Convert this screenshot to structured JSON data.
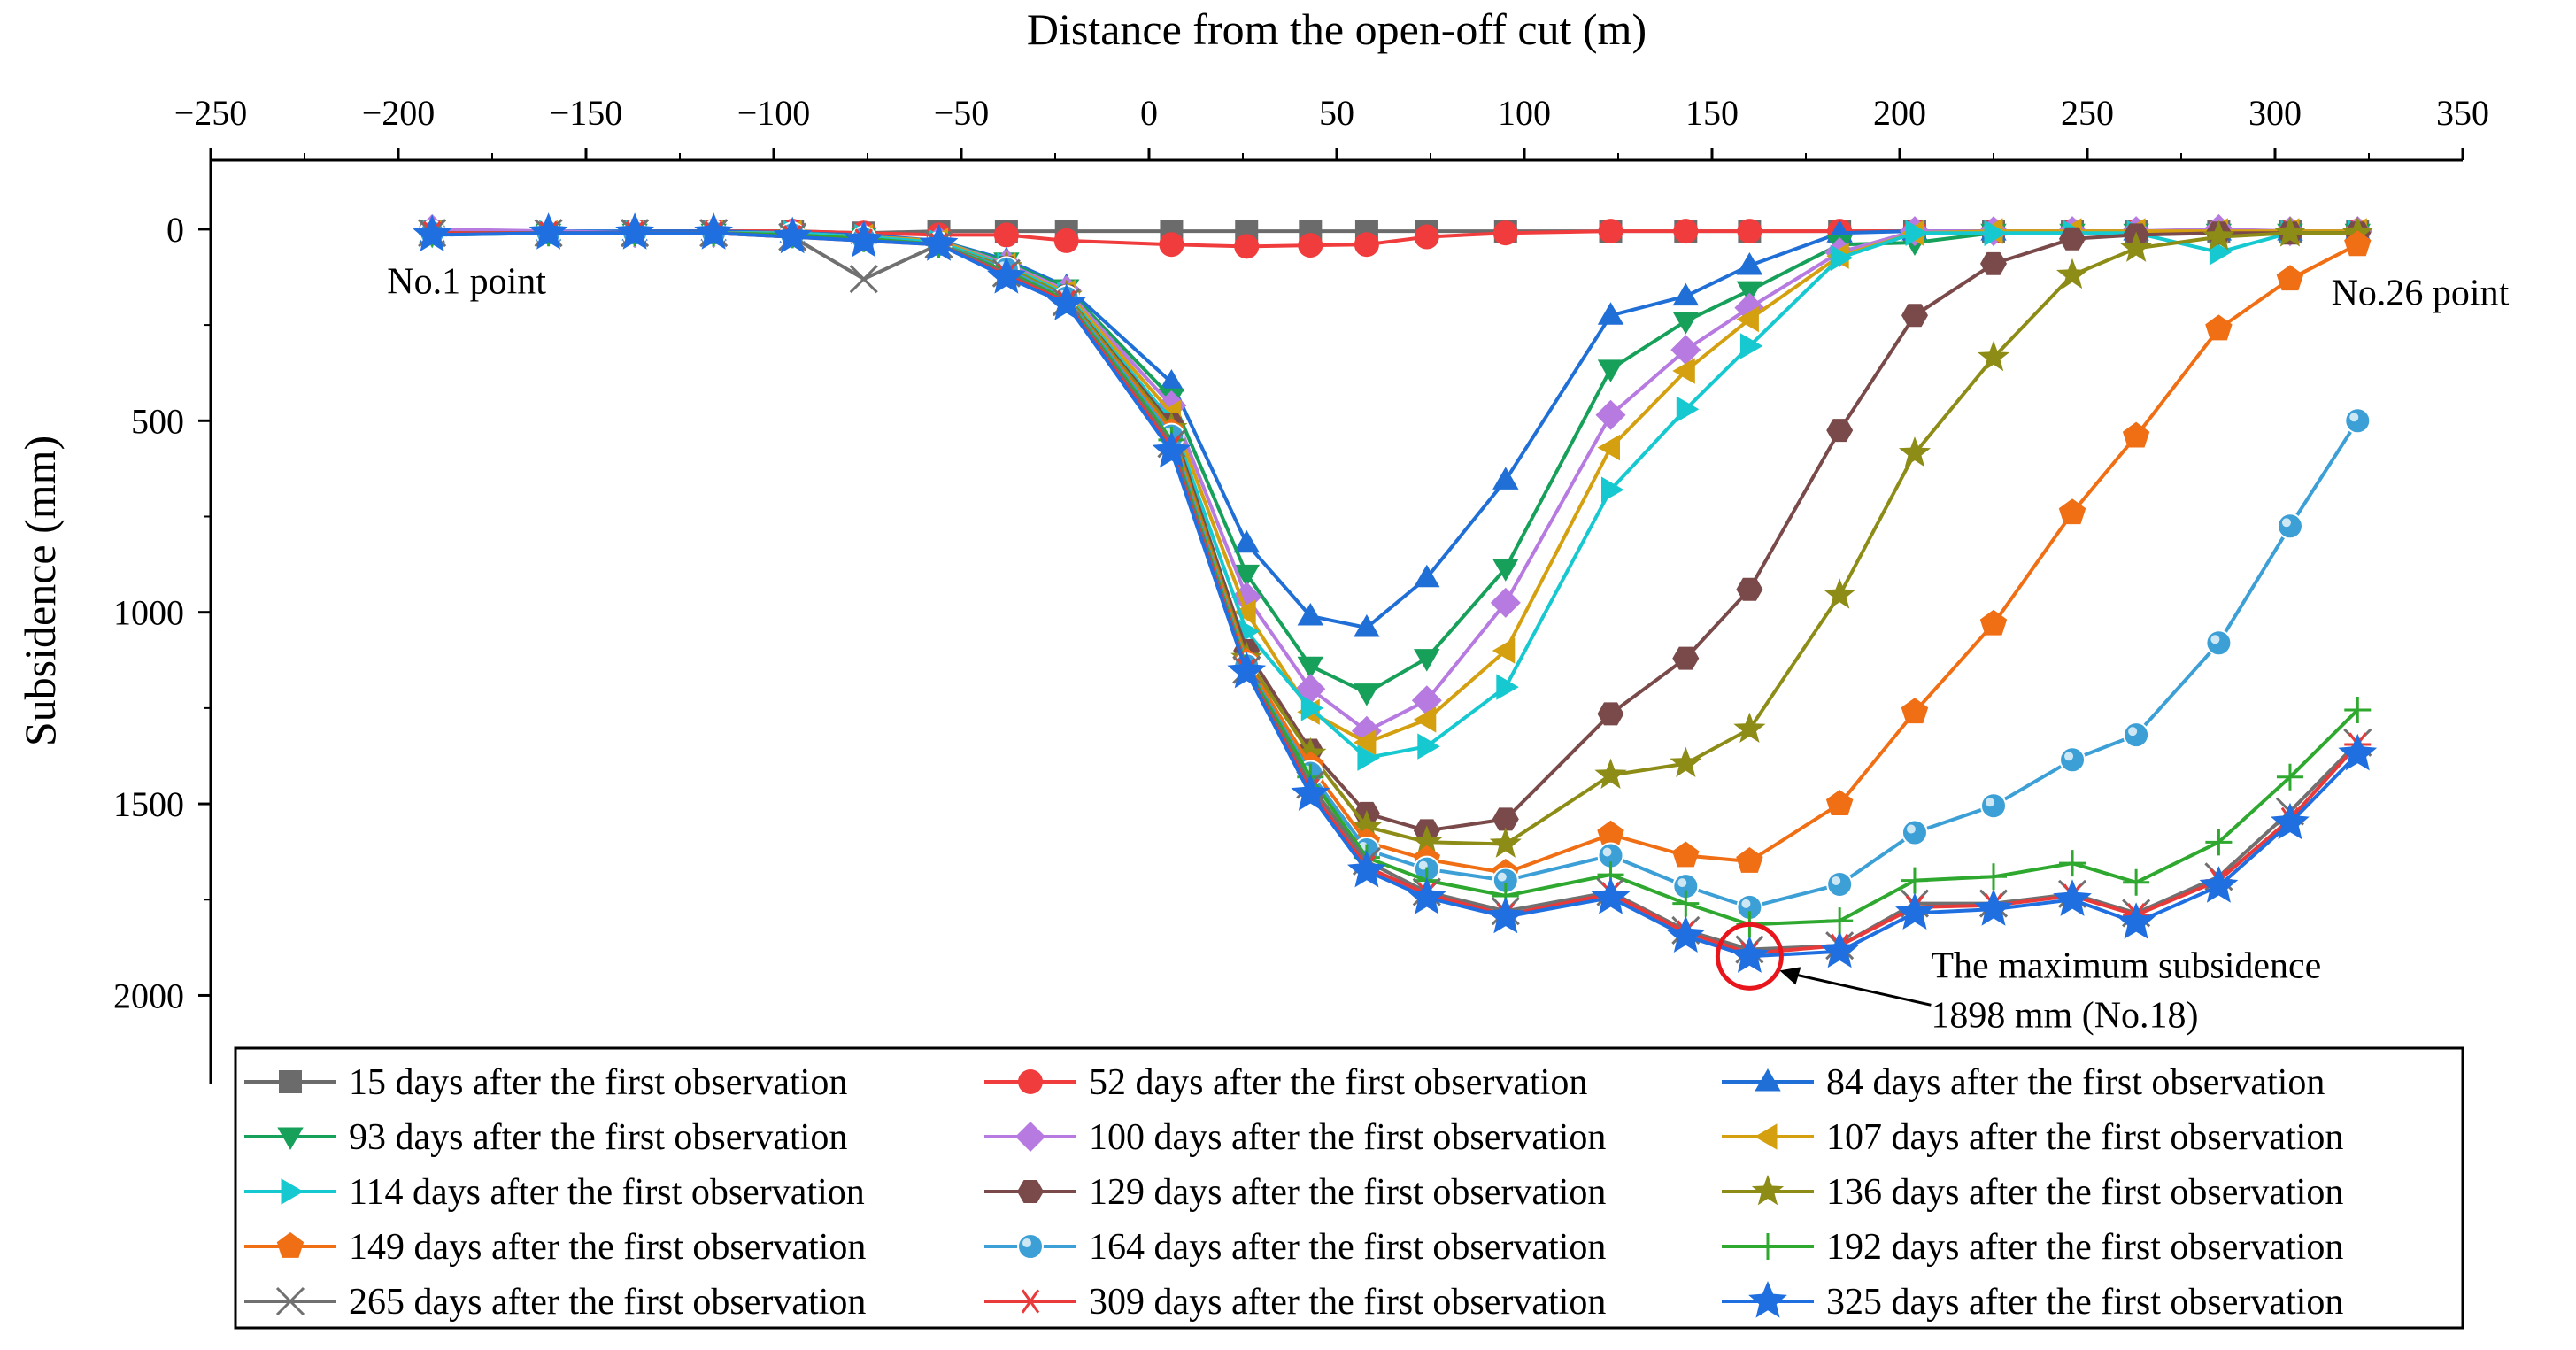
{
  "chart_data": {
    "type": "line",
    "title": "",
    "xlabel": "Distance from the open-off cut (m)",
    "ylabel": "Subsidence (mm)",
    "xlim": [
      -250,
      350
    ],
    "ylim": [
      2230,
      -180
    ],
    "x_ticks": [
      -250,
      -200,
      -150,
      -100,
      -50,
      0,
      50,
      100,
      150,
      200,
      250,
      300,
      350
    ],
    "y_ticks": [
      0,
      500,
      1000,
      1500,
      2000
    ],
    "x_axis_position": "top",
    "y_axis_inverted": true,
    "grid": false,
    "legend_position": "bottom",
    "x": [
      -191,
      -160,
      -137,
      -116,
      -95,
      -76,
      -56,
      -38,
      -22,
      6,
      26,
      43,
      58,
      74,
      95,
      123,
      143,
      160,
      184,
      204,
      225,
      246,
      263,
      285,
      304,
      322
    ],
    "series": [
      {
        "name": "15 days after the first observation",
        "color": "#6b6b6b",
        "marker": "square",
        "values": [
          5,
          10,
          5,
          5,
          5,
          10,
          5,
          5,
          5,
          5,
          5,
          5,
          5,
          5,
          5,
          5,
          5,
          5,
          5,
          5,
          5,
          5,
          5,
          5,
          5,
          5
        ]
      },
      {
        "name": "52 days after the first observation",
        "color": "#f03c3c",
        "marker": "circle",
        "values": [
          5,
          8,
          5,
          5,
          5,
          10,
          15,
          15,
          30,
          40,
          45,
          42,
          40,
          20,
          10,
          5,
          5,
          5,
          5,
          5,
          5,
          5,
          5,
          5,
          5,
          5
        ]
      },
      {
        "name": "84 days after the first observation",
        "color": "#1f6fd6",
        "marker": "triangle-up",
        "values": [
          10,
          5,
          5,
          5,
          10,
          15,
          30,
          80,
          150,
          400,
          820,
          1010,
          1040,
          910,
          655,
          225,
          175,
          95,
          10,
          5,
          5,
          5,
          5,
          5,
          5,
          5
        ]
      },
      {
        "name": "93 days after the first observation",
        "color": "#16a05a",
        "marker": "triangle-down",
        "values": [
          15,
          10,
          10,
          10,
          15,
          20,
          30,
          85,
          155,
          440,
          900,
          1140,
          1210,
          1120,
          885,
          365,
          240,
          160,
          40,
          35,
          10,
          10,
          10,
          10,
          10,
          10
        ]
      },
      {
        "name": "100 days after the first observation",
        "color": "#b67ae0",
        "marker": "diamond",
        "values": [
          0,
          5,
          10,
          10,
          10,
          20,
          30,
          90,
          160,
          460,
          960,
          1200,
          1310,
          1230,
          975,
          485,
          315,
          205,
          60,
          5,
          5,
          5,
          5,
          0,
          5,
          5
        ]
      },
      {
        "name": "107 days after the first observation",
        "color": "#d4a010",
        "marker": "triangle-left",
        "values": [
          10,
          10,
          10,
          10,
          10,
          20,
          30,
          95,
          165,
          480,
          1000,
          1260,
          1340,
          1280,
          1100,
          570,
          370,
          235,
          70,
          10,
          5,
          5,
          5,
          5,
          5,
          5
        ]
      },
      {
        "name": "114 days after the first observation",
        "color": "#16c8d0",
        "marker": "triangle-right",
        "values": [
          10,
          10,
          10,
          10,
          10,
          20,
          35,
          95,
          170,
          500,
          1050,
          1250,
          1380,
          1350,
          1195,
          680,
          470,
          305,
          75,
          10,
          10,
          10,
          10,
          60,
          10,
          10
        ]
      },
      {
        "name": "129 days after the first observation",
        "color": "#7a4a4a",
        "marker": "hexagon",
        "values": [
          10,
          10,
          10,
          10,
          15,
          25,
          40,
          100,
          175,
          510,
          1100,
          1360,
          1525,
          1570,
          1540,
          1265,
          1120,
          940,
          525,
          225,
          90,
          25,
          15,
          10,
          10,
          10
        ]
      },
      {
        "name": "136 days after the first observation",
        "color": "#8c8c16",
        "marker": "star",
        "values": [
          10,
          10,
          10,
          10,
          15,
          25,
          40,
          100,
          175,
          520,
          1120,
          1370,
          1560,
          1600,
          1605,
          1425,
          1395,
          1305,
          955,
          585,
          335,
          120,
          50,
          20,
          10,
          10
        ]
      },
      {
        "name": "149 days after the first observation",
        "color": "#f06e14",
        "marker": "pentagon",
        "values": [
          10,
          10,
          10,
          10,
          15,
          25,
          40,
          105,
          180,
          530,
          1130,
          1400,
          1600,
          1645,
          1680,
          1580,
          1635,
          1650,
          1500,
          1260,
          1030,
          740,
          540,
          260,
          130,
          40
        ]
      },
      {
        "name": "164 days after the first observation",
        "color": "#3c9fd6",
        "marker": "sphere",
        "values": [
          10,
          10,
          10,
          10,
          15,
          25,
          40,
          105,
          180,
          540,
          1140,
          1420,
          1620,
          1670,
          1700,
          1635,
          1715,
          1770,
          1710,
          1575,
          1505,
          1385,
          1320,
          1080,
          775,
          500
        ]
      },
      {
        "name": "192 days after the first observation",
        "color": "#2ea82e",
        "marker": "plus",
        "values": [
          10,
          10,
          10,
          10,
          15,
          25,
          40,
          110,
          185,
          550,
          1145,
          1430,
          1640,
          1700,
          1740,
          1685,
          1760,
          1815,
          1805,
          1700,
          1690,
          1655,
          1705,
          1600,
          1430,
          1255
        ]
      },
      {
        "name": "265 days after the first observation",
        "color": "#707070",
        "marker": "cross",
        "values": [
          10,
          10,
          10,
          10,
          20,
          130,
          40,
          115,
          190,
          560,
          1150,
          1450,
          1650,
          1730,
          1780,
          1730,
          1830,
          1880,
          1870,
          1760,
          1760,
          1735,
          1785,
          1690,
          1520,
          1340
        ]
      },
      {
        "name": "309 days after the first observation",
        "color": "#e83a3a",
        "marker": "asterisk",
        "values": [
          10,
          10,
          10,
          10,
          20,
          30,
          40,
          120,
          190,
          570,
          1150,
          1465,
          1665,
          1735,
          1790,
          1735,
          1835,
          1890,
          1870,
          1770,
          1765,
          1740,
          1790,
          1700,
          1540,
          1345
        ]
      },
      {
        "name": "325 days after the first observation",
        "color": "#1f6fe0",
        "marker": "star5",
        "values": [
          15,
          10,
          10,
          10,
          20,
          30,
          40,
          125,
          195,
          580,
          1155,
          1475,
          1675,
          1745,
          1795,
          1745,
          1845,
          1898,
          1885,
          1785,
          1775,
          1750,
          1810,
          1715,
          1550,
          1370
        ]
      }
    ],
    "annotations": [
      {
        "text": "No.1 point",
        "x": -203,
        "y": 135
      },
      {
        "text": "No.26 point",
        "x": 315,
        "y": 165
      },
      {
        "text": "The maximum subsidence",
        "line2": "1898 mm (No.18)",
        "x": 160,
        "y": 1898
      }
    ]
  }
}
